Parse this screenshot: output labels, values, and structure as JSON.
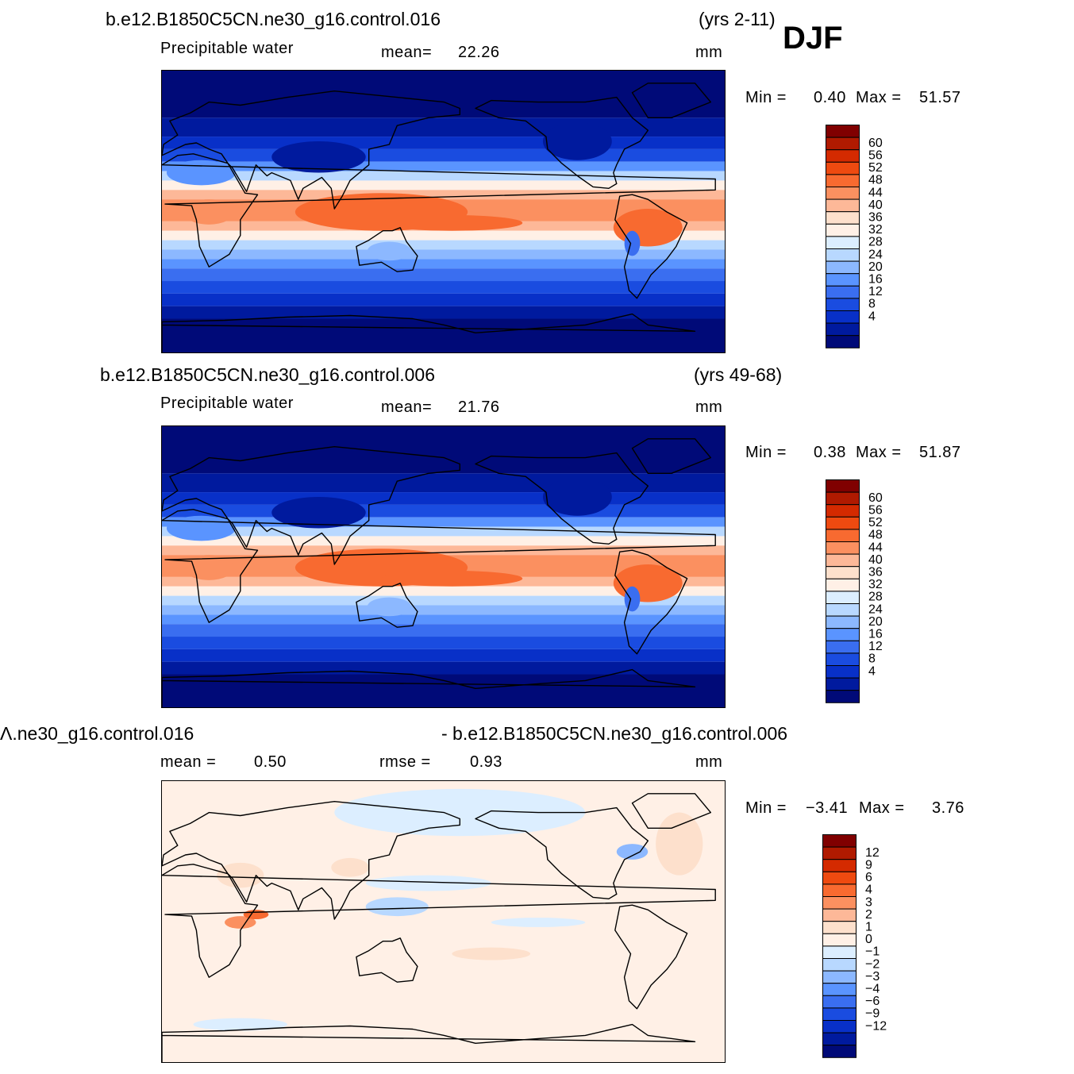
{
  "season": "DJF",
  "panels": [
    {
      "case": "b.e12.B1850C5CN.ne30_g16.control.016",
      "years": "(yrs 2-11)",
      "variable": "Precipitable  water",
      "stat_label": "mean=",
      "stat_value": "22.26",
      "units": "mm",
      "min_label": "Min  =",
      "min_value": "0.40",
      "max_label": "Max  =",
      "max_value": "51.57",
      "colorbar_labels": [
        "60",
        "56",
        "52",
        "48",
        "44",
        "40",
        "36",
        "32",
        "28",
        "24",
        "20",
        "16",
        "12",
        "8",
        "4"
      ],
      "field": "mean"
    },
    {
      "case": "b.e12.B1850C5CN.ne30_g16.control.006",
      "years": "(yrs 49-68)",
      "variable": "Precipitable  water",
      "stat_label": "mean=",
      "stat_value": "21.76",
      "units": "mm",
      "min_label": "Min  =",
      "min_value": "0.38",
      "max_label": "Max  =",
      "max_value": "51.87",
      "colorbar_labels": [
        "60",
        "56",
        "52",
        "48",
        "44",
        "40",
        "36",
        "32",
        "28",
        "24",
        "20",
        "16",
        "12",
        "8",
        "4"
      ],
      "field": "mean"
    },
    {
      "case": "Ʌ.ne30_g16.control.016",
      "case_right": "- b.e12.B1850C5CN.ne30_g16.control.006",
      "stat_label": "mean  =",
      "stat_value": "0.50",
      "rmse_label": "rmse  =",
      "rmse_value": "0.93",
      "units": "mm",
      "min_label": "Min  =",
      "min_value": "−3.41",
      "max_label": "Max  =",
      "max_value": "3.76",
      "colorbar_labels": [
        "12",
        "9",
        "6",
        "4",
        "3",
        "2",
        "1",
        "0",
        "−1",
        "−2",
        "−3",
        "−4",
        "−6",
        "−9",
        "−12"
      ],
      "field": "diff"
    }
  ],
  "palette": [
    "#800000",
    "#b01a00",
    "#d42a00",
    "#ee4a10",
    "#f86a30",
    "#fb9060",
    "#fdb898",
    "#fde0cc",
    "#fff0e6",
    "#dceeff",
    "#b8d8ff",
    "#8cb8ff",
    "#5a94ff",
    "#3a6ef0",
    "#1a4ce0",
    "#0830c8",
    "#001a9e",
    "#000a78"
  ]
}
